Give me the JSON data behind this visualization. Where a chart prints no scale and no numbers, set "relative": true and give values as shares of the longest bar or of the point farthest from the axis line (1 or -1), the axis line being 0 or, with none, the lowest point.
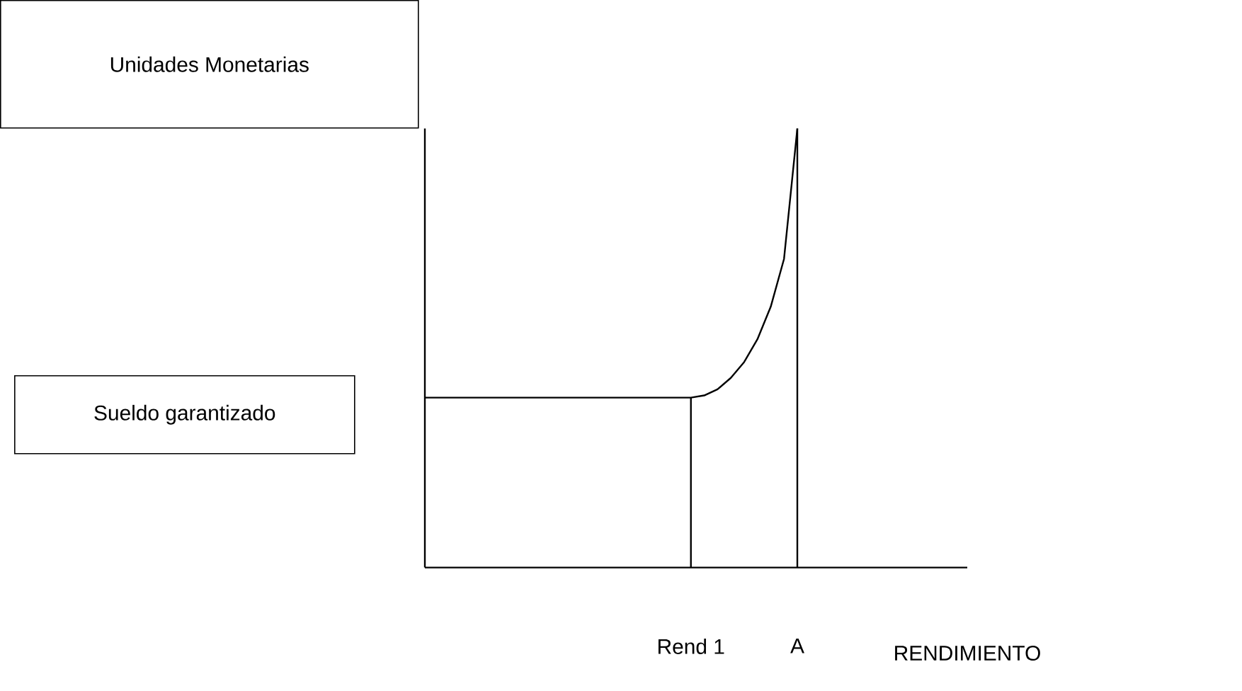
{
  "chart_data": {
    "type": "line",
    "relative": true,
    "xlabel": "RENDIMIENTO",
    "categories": [
      null,
      null,
      null,
      null,
      null,
      null,
      null,
      null,
      null,
      null,
      null,
      null,
      null,
      null,
      null,
      null,
      null,
      null,
      null,
      null,
      "Rend 1",
      null,
      null,
      null,
      null,
      null,
      null,
      null,
      "A"
    ],
    "series": [
      {
        "color": "#000000",
        "values": [
          0.387,
          0.387,
          0.387,
          0.387,
          0.387,
          0.387,
          0.387,
          0.387,
          0.387,
          0.387,
          0.387,
          0.387,
          0.387,
          0.387,
          0.387,
          0.387,
          0.387,
          0.387,
          0.387,
          0.387,
          0.387,
          0.392,
          0.406,
          0.432,
          0.468,
          0.52,
          0.594,
          0.703,
          1.0
        ]
      }
    ],
    "ref_lines": [
      {
        "axis": "x",
        "value": "Rend 1"
      },
      {
        "axis": "x",
        "value": "A"
      }
    ],
    "annotations": [
      "Unidades Monetarias",
      "Sueldo garantizado"
    ]
  }
}
